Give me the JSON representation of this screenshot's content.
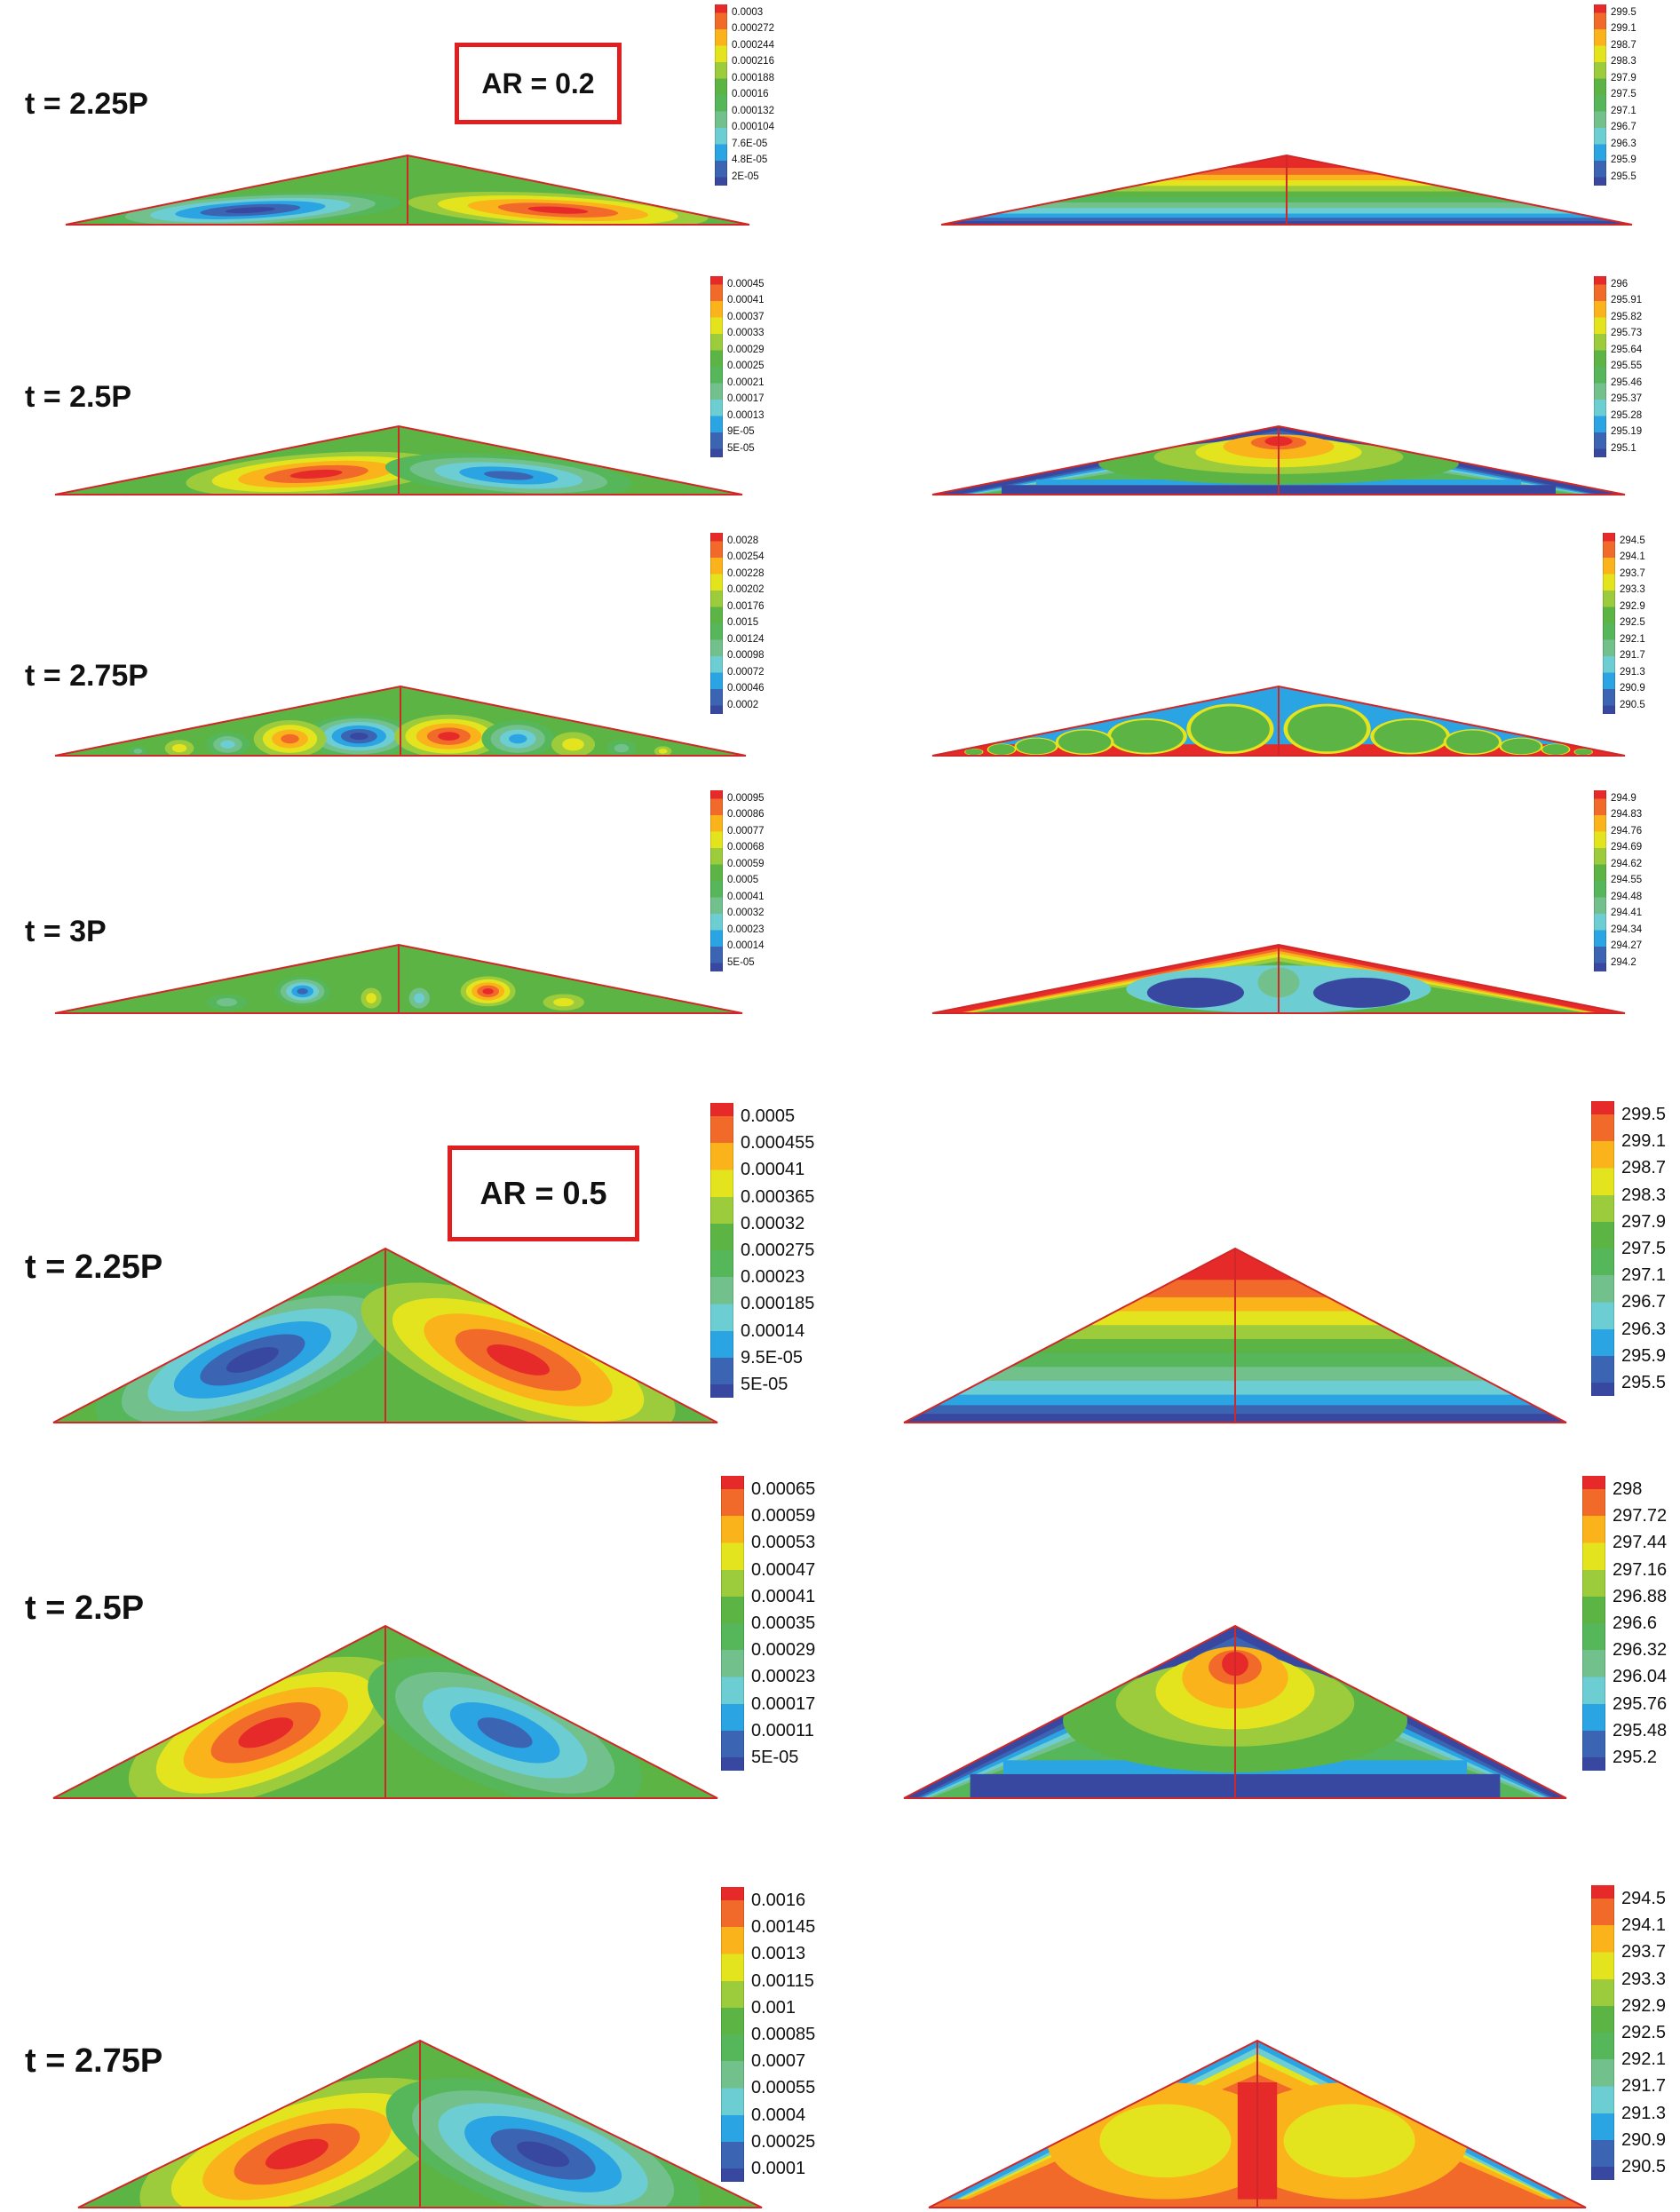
{
  "figure": {
    "palette": [
      "#e62a2a",
      "#f26a2a",
      "#fbb31c",
      "#e4e41e",
      "#9ccc3c",
      "#5cb444",
      "#56b65a",
      "#72c08c",
      "#6ccdd2",
      "#2aa4e2",
      "#3b64b2",
      "#3848a0"
    ],
    "outline_color": "#d02828",
    "sections": [
      {
        "ar_label": "AR = 0.2",
        "rows": [
          {
            "time_label": "t = 2.25P",
            "left_legend": [
              "0.0003",
              "0.000272",
              "0.000244",
              "0.000216",
              "0.000188",
              "0.00016",
              "0.000132",
              "0.000104",
              "7.6E-05",
              "4.8E-05",
              "2E-05"
            ],
            "right_legend": [
              "299.5",
              "299.1",
              "298.7",
              "298.3",
              "297.9",
              "297.5",
              "297.1",
              "296.7",
              "296.3",
              "295.9",
              "295.5"
            ]
          },
          {
            "time_label": "t = 2.5P",
            "left_legend": [
              "0.00045",
              "0.00041",
              "0.00037",
              "0.00033",
              "0.00029",
              "0.00025",
              "0.00021",
              "0.00017",
              "0.00013",
              "9E-05",
              "5E-05"
            ],
            "right_legend": [
              "296",
              "295.91",
              "295.82",
              "295.73",
              "295.64",
              "295.55",
              "295.46",
              "295.37",
              "295.28",
              "295.19",
              "295.1"
            ]
          },
          {
            "time_label": "t = 2.75P",
            "left_legend": [
              "0.0028",
              "0.00254",
              "0.00228",
              "0.00202",
              "0.00176",
              "0.0015",
              "0.00124",
              "0.00098",
              "0.00072",
              "0.00046",
              "0.0002"
            ],
            "right_legend": [
              "294.5",
              "294.1",
              "293.7",
              "293.3",
              "292.9",
              "292.5",
              "292.1",
              "291.7",
              "291.3",
              "290.9",
              "290.5"
            ]
          },
          {
            "time_label": "t = 3P",
            "left_legend": [
              "0.00095",
              "0.00086",
              "0.00077",
              "0.00068",
              "0.00059",
              "0.0005",
              "0.00041",
              "0.00032",
              "0.00023",
              "0.00014",
              "5E-05"
            ],
            "right_legend": [
              "294.9",
              "294.83",
              "294.76",
              "294.69",
              "294.62",
              "294.55",
              "294.48",
              "294.41",
              "294.34",
              "294.27",
              "294.2"
            ]
          }
        ]
      },
      {
        "ar_label": "AR = 0.5",
        "rows": [
          {
            "time_label": "t = 2.25P",
            "left_legend": [
              "0.0005",
              "0.000455",
              "0.00041",
              "0.000365",
              "0.00032",
              "0.000275",
              "0.00023",
              "0.000185",
              "0.00014",
              "9.5E-05",
              "5E-05"
            ],
            "right_legend": [
              "299.5",
              "299.1",
              "298.7",
              "298.3",
              "297.9",
              "297.5",
              "297.1",
              "296.7",
              "296.3",
              "295.9",
              "295.5"
            ]
          },
          {
            "time_label": "t = 2.5P",
            "left_legend": [
              "0.00065",
              "0.00059",
              "0.00053",
              "0.00047",
              "0.00041",
              "0.00035",
              "0.00029",
              "0.00023",
              "0.00017",
              "0.00011",
              "5E-05"
            ],
            "right_legend": [
              "298",
              "297.72",
              "297.44",
              "297.16",
              "296.88",
              "296.6",
              "296.32",
              "296.04",
              "295.76",
              "295.48",
              "295.2"
            ]
          },
          {
            "time_label": "t = 2.75P",
            "left_legend": [
              "0.0016",
              "0.00145",
              "0.0013",
              "0.00115",
              "0.001",
              "0.00085",
              "0.0007",
              "0.00055",
              "0.0004",
              "0.00025",
              "0.0001"
            ],
            "right_legend": [
              "294.5",
              "294.1",
              "293.7",
              "293.3",
              "292.9",
              "292.5",
              "292.1",
              "291.7",
              "291.3",
              "290.9",
              "290.5"
            ]
          }
        ]
      }
    ]
  }
}
